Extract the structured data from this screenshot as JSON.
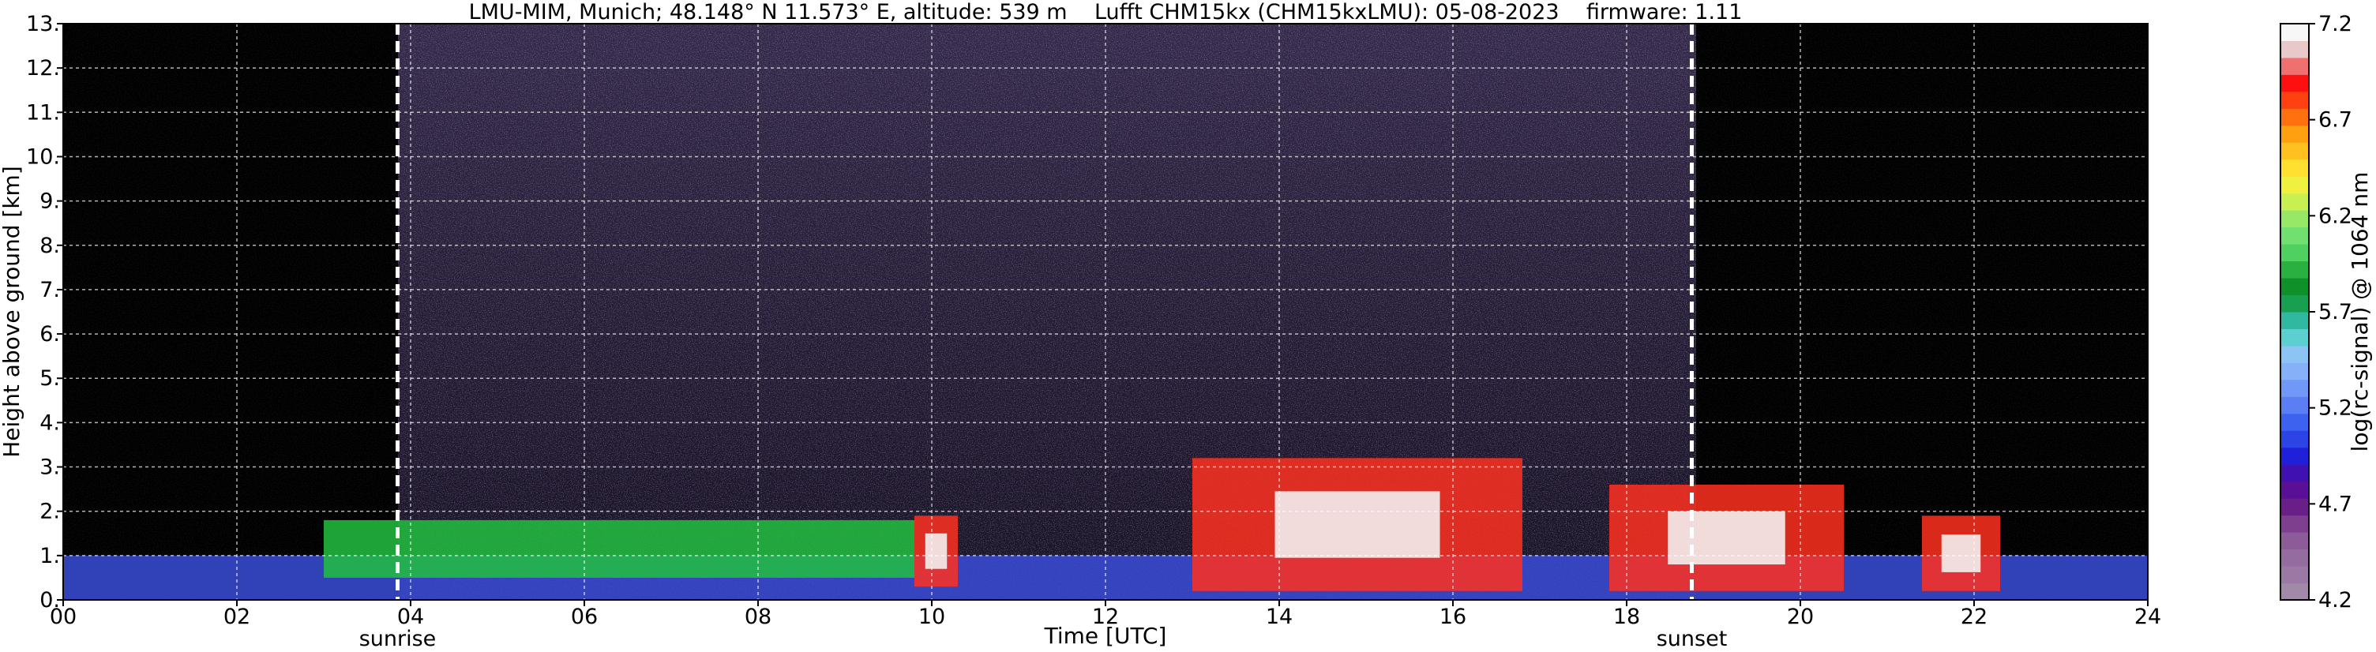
{
  "chart_data": {
    "type": "heatmap",
    "title": "LMU-MIM, Munich; 48.148° N 11.573° E, altitude: 539 m    Lufft CHM15kx (CHM15kxLMU): 05-08-2023    firmware: 1.11",
    "xlabel": "Time [UTC]",
    "ylabel": "Height above ground [km]",
    "xlim": [
      0,
      24
    ],
    "ylim": [
      0,
      13
    ],
    "x_ticks": [
      "00",
      "02",
      "04",
      "06",
      "08",
      "10",
      "12",
      "14",
      "16",
      "18",
      "20",
      "22",
      "24"
    ],
    "y_ticks": [
      "0.",
      "1.",
      "2.",
      "3.",
      "4.",
      "5.",
      "6.",
      "7.",
      "8.",
      "9.",
      "10.",
      "11.",
      "12.",
      "13."
    ],
    "grid": true,
    "annotations": [
      {
        "label": "sunrise",
        "time": 3.85
      },
      {
        "label": "sunset",
        "time": 18.75
      }
    ],
    "colorbar": {
      "label": "log(rc-signal) @ 1064 nm",
      "range": [
        4.2,
        7.2
      ],
      "tick_labels": [
        "4.2",
        "4.7",
        "5.2",
        "5.7",
        "6.2",
        "6.7",
        "7.2"
      ],
      "tick_values": [
        4.2,
        4.7,
        5.2,
        5.7,
        6.2,
        6.7,
        7.2
      ],
      "colors": [
        "#a08aa8",
        "#9a7aa4",
        "#946c9f",
        "#8c5c99",
        "#7f3f8f",
        "#6a1f88",
        "#5a1096",
        "#4010b0",
        "#2020d8",
        "#2c44e6",
        "#3d62ef",
        "#5b7ef5",
        "#7098f6",
        "#86b0f7",
        "#8cc4f5",
        "#5cd0d0",
        "#30b8a0",
        "#18a050",
        "#109028",
        "#28b040",
        "#50d060",
        "#70e070",
        "#98e868",
        "#c8f050",
        "#f0f040",
        "#ffe030",
        "#ffc020",
        "#ffa010",
        "#ff7010",
        "#ff4010",
        "#ff1010",
        "#f07070",
        "#e8c8c8",
        "#f7f7f7"
      ]
    },
    "layers": [
      {
        "name": "boundary layer (blue/purple)",
        "start": 0,
        "end": 24,
        "top_km": 1.0
      },
      {
        "name": "aerosol layer (green)",
        "start": 3.0,
        "end": 9.8,
        "base_km": 0.5,
        "top_km": 1.8
      },
      {
        "name": "dense cloud (red/white)",
        "start": 9.8,
        "end": 10.3,
        "base_km": 0.3,
        "top_km": 1.9
      },
      {
        "name": "dense cloud (red/white)",
        "start": 13.0,
        "end": 16.8,
        "base_km": 0.2,
        "top_km": 3.2
      },
      {
        "name": "dense cloud (red/white)",
        "start": 17.8,
        "end": 20.5,
        "base_km": 0.2,
        "top_km": 2.6
      },
      {
        "name": "dense cloud (red/white)",
        "start": 21.4,
        "end": 22.3,
        "base_km": 0.2,
        "top_km": 1.9
      }
    ]
  }
}
